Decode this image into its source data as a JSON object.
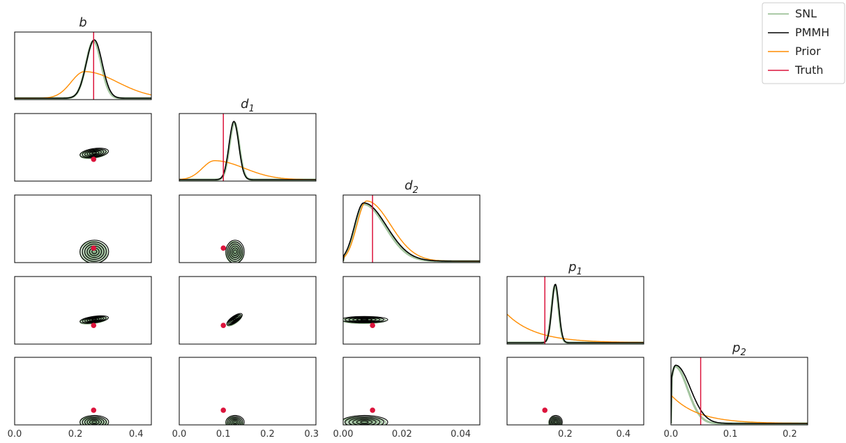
{
  "chart_data": {
    "type": "corner",
    "parameters": [
      "b",
      "d_1",
      "d_2",
      "p_1",
      "p_2"
    ],
    "titles": [
      {
        "base": "b",
        "sub": ""
      },
      {
        "base": "d",
        "sub": "1"
      },
      {
        "base": "d",
        "sub": "2"
      },
      {
        "base": "p",
        "sub": "1"
      },
      {
        "base": "p",
        "sub": "2"
      }
    ],
    "xlim": [
      [
        0.0,
        0.45
      ],
      [
        0.0,
        0.31
      ],
      [
        0.0,
        0.0465
      ],
      [
        0.0,
        0.47
      ],
      [
        0.0,
        0.23
      ]
    ],
    "ylim": [
      [
        0.0,
        0.45
      ],
      [
        0.0,
        0.31
      ],
      [
        0.0,
        0.0465
      ],
      [
        0.0,
        0.47
      ],
      [
        0.0,
        0.23
      ]
    ],
    "xticks": [
      [
        "0.0",
        "0.2",
        "0.4"
      ],
      [
        "0.0",
        "0.1",
        "0.2",
        "0.3"
      ],
      [
        "0.00",
        "0.02",
        "0.04"
      ],
      [
        "0.2",
        "0.4"
      ],
      [
        "0.0",
        "0.1",
        "0.2"
      ]
    ],
    "xtick_values": [
      [
        0.0,
        0.2,
        0.4
      ],
      [
        0.0,
        0.1,
        0.2,
        0.3
      ],
      [
        0.0,
        0.02,
        0.04
      ],
      [
        0.2,
        0.4
      ],
      [
        0.0,
        0.1,
        0.2
      ]
    ],
    "truth": [
      0.26,
      0.1,
      0.01,
      0.13,
      0.05
    ],
    "posterior": {
      "SNL": {
        "mean": [
          0.26,
          0.125,
          0.007,
          0.165,
          0.007
        ],
        "sd": [
          0.025,
          0.011,
          0.0042,
          0.012,
          0.012
        ]
      },
      "PMMH": {
        "mean": [
          0.262,
          0.124,
          0.007,
          0.166,
          0.008
        ],
        "sd": [
          0.026,
          0.011,
          0.0044,
          0.012,
          0.014
        ]
      }
    },
    "prior": {
      "mode": [
        0.23,
        0.08,
        0.008,
        0.0,
        0.0
      ],
      "sd": [
        0.08,
        0.05,
        0.006,
        0.1,
        0.045
      ]
    },
    "legend": {
      "position": "top-right",
      "entries": [
        {
          "label": "SNL",
          "color": "#8fb88a"
        },
        {
          "label": "PMMH",
          "color": "#000000"
        },
        {
          "label": "Prior",
          "color": "#ff8c00"
        },
        {
          "label": "Truth",
          "color": "#dc143c"
        }
      ]
    },
    "colors": {
      "snl_fill": "#6b9968",
      "snl_line": "#8fb88a",
      "pmmh": "#000000",
      "prior": "#ff8c00",
      "truth": "#dc143c"
    }
  }
}
